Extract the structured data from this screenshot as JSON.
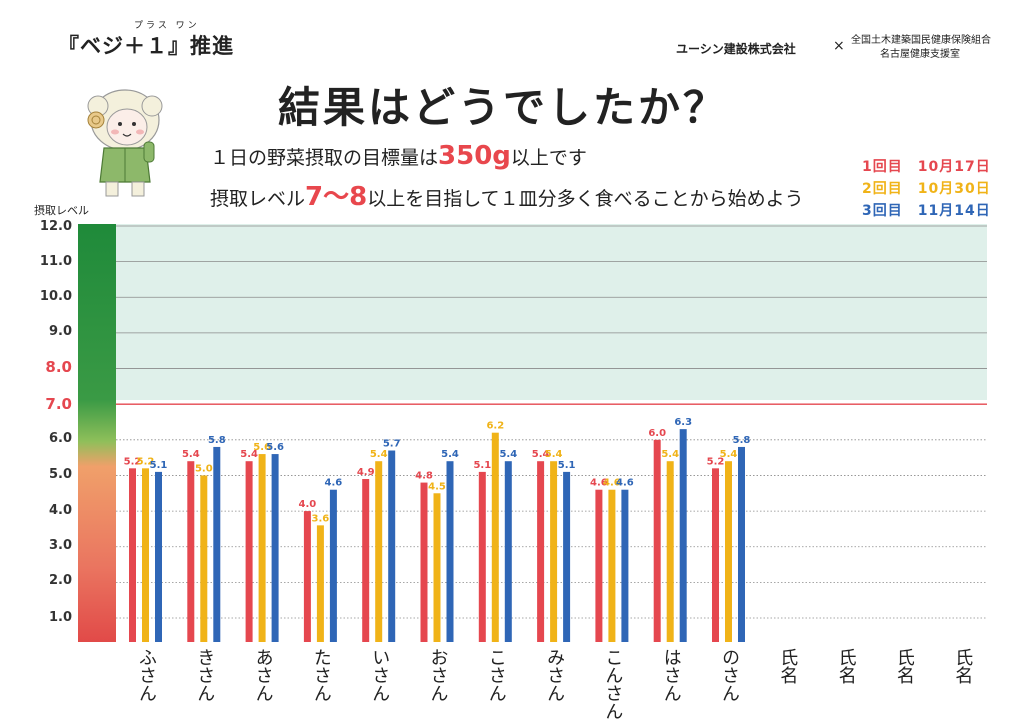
{
  "header": {
    "program_title": "『ベジ＋１』推進",
    "program_ruby": "プラス ワン",
    "company": "ユーシン建設株式会社",
    "times": "×",
    "association_line1": "全国土木建築国民健康保険組合",
    "association_line2": "名古屋健康支援室",
    "headline": "結果はどうでしたか？",
    "line1_pre": "１日の野菜摂取の目標量は",
    "line1_hl": "350g",
    "line1_post": "以上です",
    "line2_pre": "摂取レベル",
    "line2_hl": "7〜8",
    "line2_post": "以上を目指して１皿分多く食べることから始めよう"
  },
  "legend": [
    {
      "label": "1回目　10月17日",
      "color": "#e5474f"
    },
    {
      "label": "2回目　10月30日",
      "color": "#f0b318"
    },
    {
      "label": "3回目　11月14日",
      "color": "#2f66b6"
    }
  ],
  "chart_data": {
    "type": "bar",
    "ylabel": "摂取レベル",
    "ylim": [
      0.5,
      12.0
    ],
    "yticks": [
      "12.0",
      "11.0",
      "10.0",
      "9.0",
      "8.0",
      "7.0",
      "6.0",
      "5.0",
      "4.0",
      "3.0",
      "2.0",
      "1.0"
    ],
    "categories": [
      "ふさん",
      "きさん",
      "あさん",
      "たさん",
      "いさん",
      "おさん",
      "こさん",
      "みさん",
      "こんさん",
      "はさん",
      "のさん",
      "氏名",
      "氏名",
      "氏名",
      "氏名"
    ],
    "series": [
      {
        "name": "1回目",
        "color": "#e5474f",
        "values": [
          5.2,
          5.4,
          5.4,
          4.0,
          4.9,
          4.8,
          5.1,
          5.4,
          4.6,
          6.0,
          5.2,
          null,
          null,
          null,
          null
        ]
      },
      {
        "name": "2回目",
        "color": "#f0b318",
        "values": [
          5.2,
          5.0,
          5.6,
          3.6,
          5.4,
          4.5,
          6.2,
          5.4,
          4.6,
          5.4,
          5.4,
          null,
          null,
          null,
          null
        ]
      },
      {
        "name": "3回目",
        "color": "#2f66b6",
        "values": [
          5.1,
          5.8,
          5.6,
          4.6,
          5.7,
          5.4,
          5.4,
          5.1,
          4.6,
          6.3,
          5.8,
          null,
          null,
          null,
          null
        ]
      }
    ],
    "target_level": 7.0,
    "grid": true
  }
}
